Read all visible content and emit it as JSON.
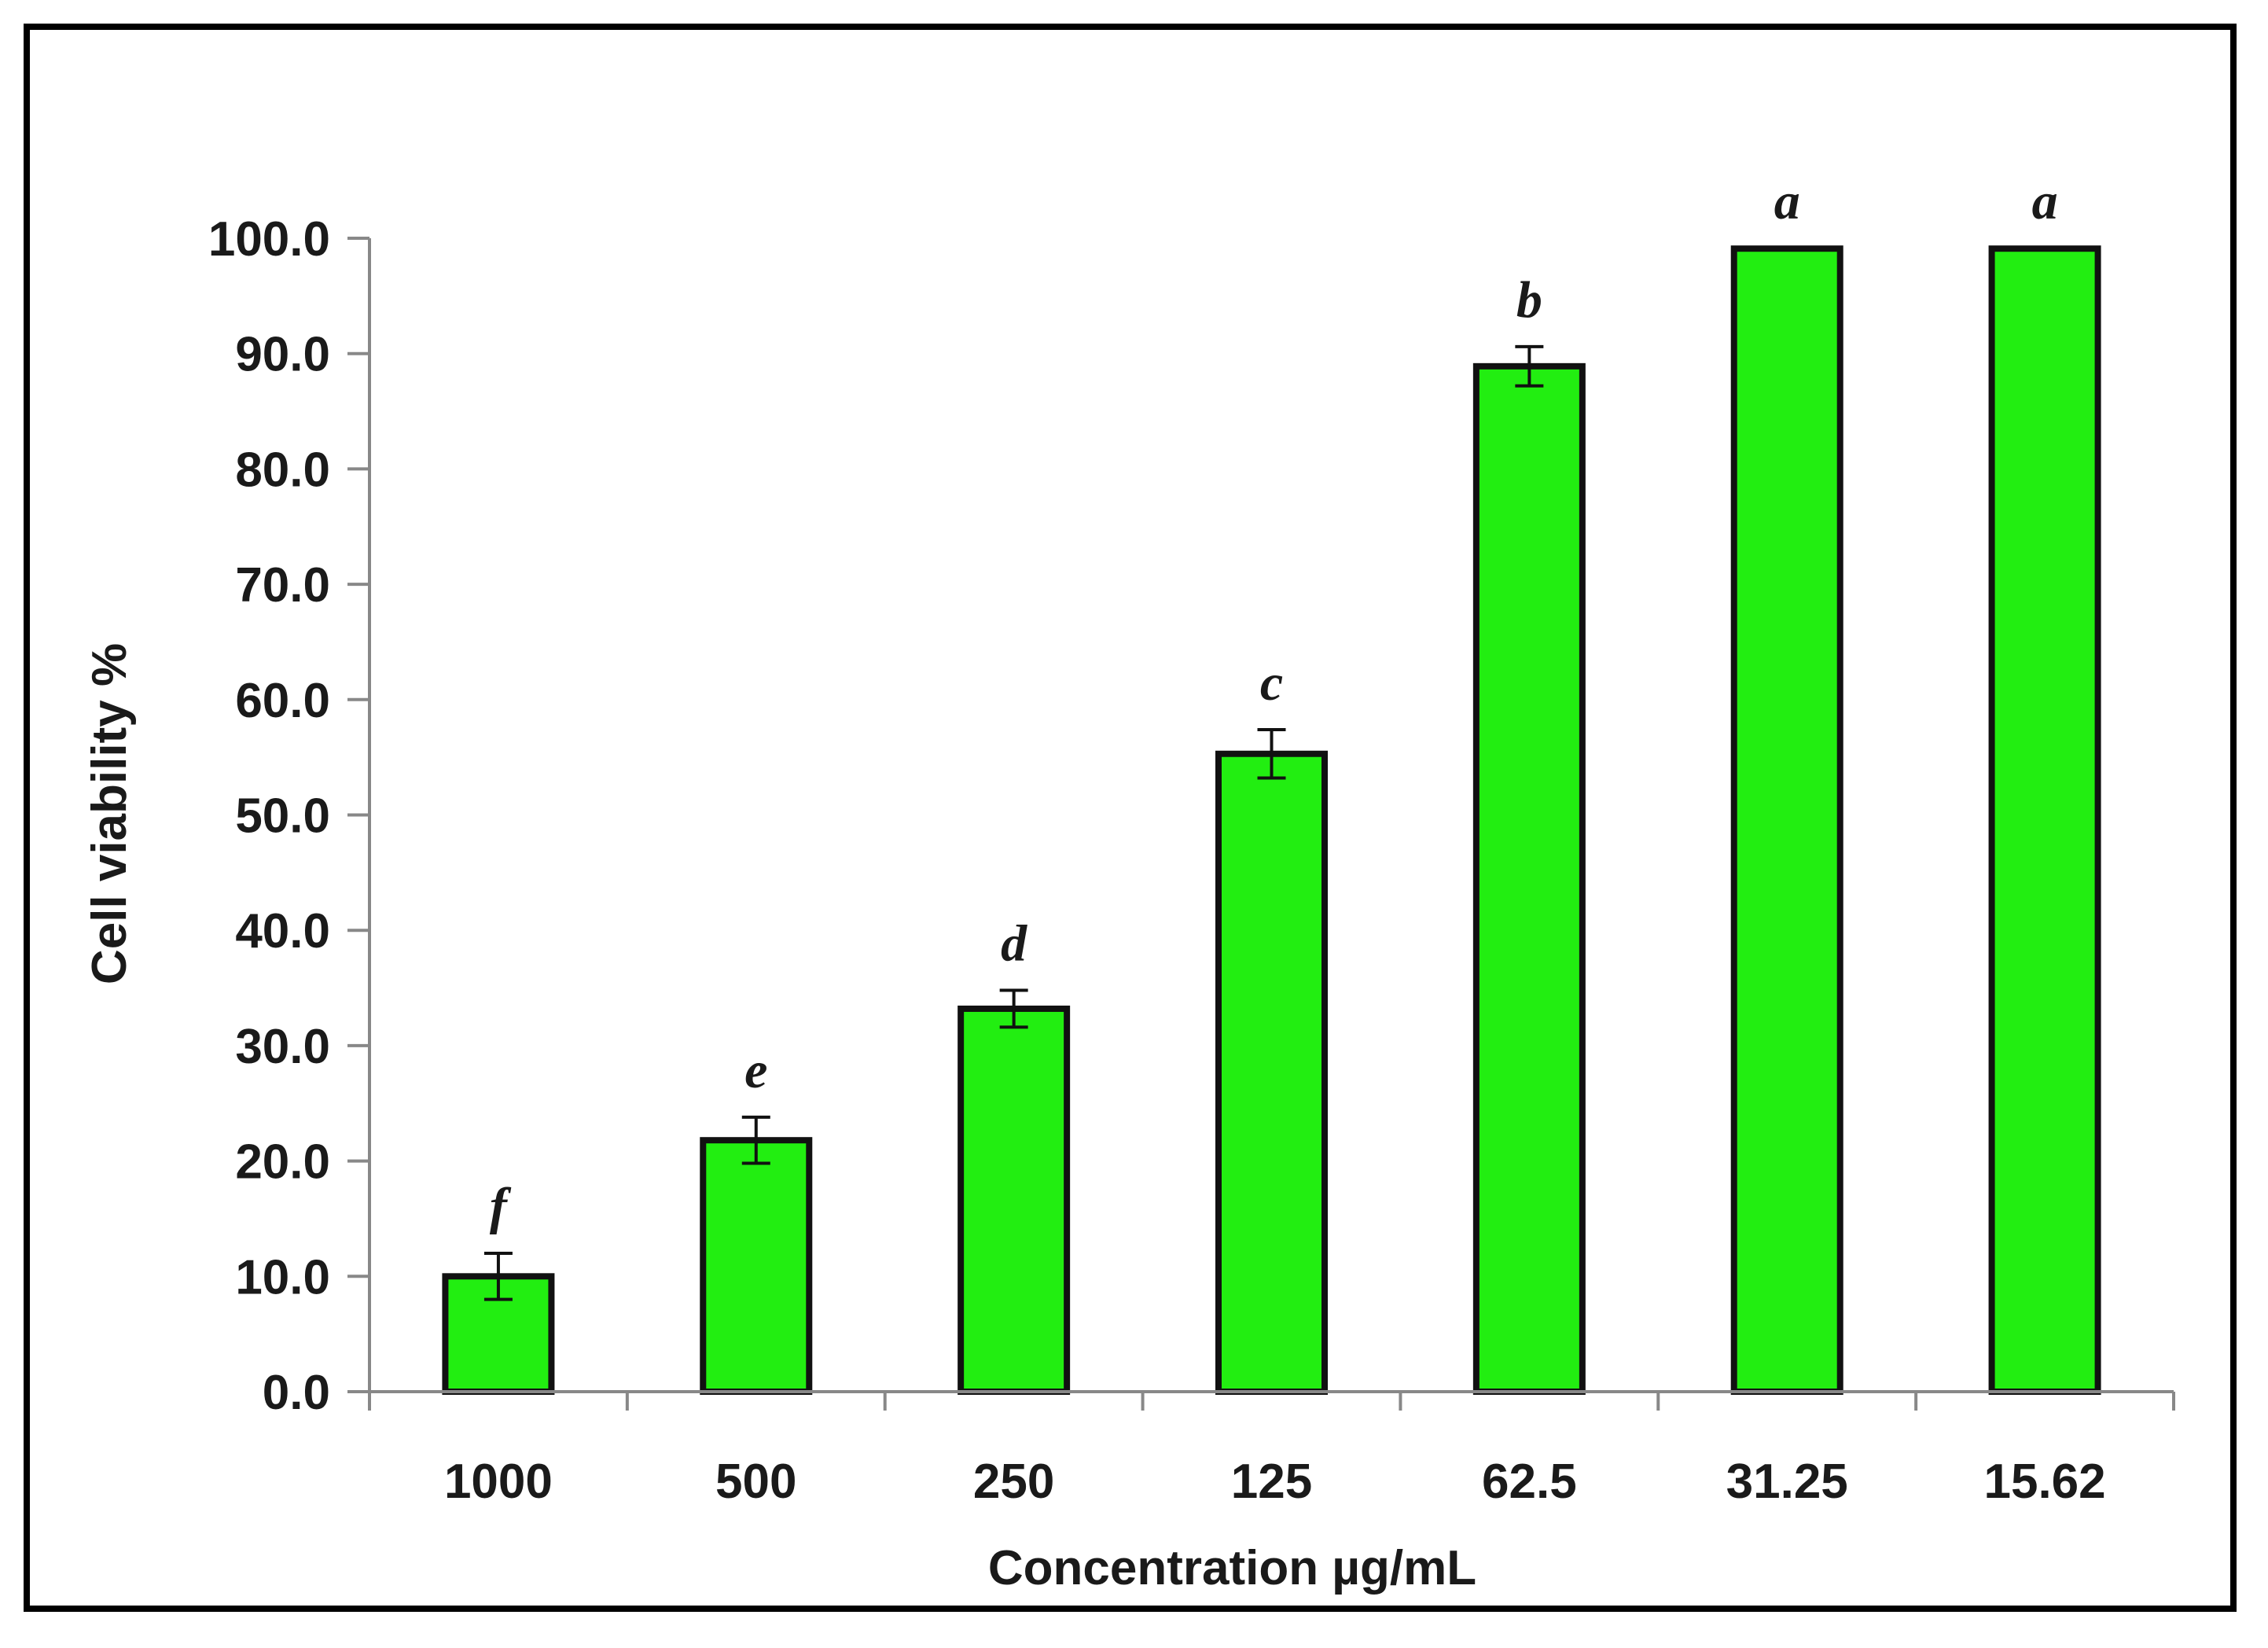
{
  "chart_data": {
    "type": "bar",
    "title": "",
    "xlabel": "Concentration µg/mL",
    "ylabel": "Cell viability %",
    "ylim": [
      0,
      100
    ],
    "y_ticks": [
      "0.0",
      "10.0",
      "20.0",
      "30.0",
      "40.0",
      "50.0",
      "60.0",
      "70.0",
      "80.0",
      "90.0",
      "100.0"
    ],
    "categories": [
      "1000",
      "500",
      "250",
      "125",
      "62.5",
      "31.25",
      "15.62"
    ],
    "series": [
      {
        "name": "Cell viability",
        "values": [
          10.0,
          21.8,
          33.2,
          55.3,
          88.9,
          99.1,
          99.1
        ],
        "errors": [
          2.0,
          2.0,
          1.6,
          2.1,
          1.7,
          0,
          0
        ],
        "significance": [
          "f",
          "e",
          "d",
          "c",
          "b",
          "a",
          "a"
        ],
        "color": "#22ee11"
      }
    ],
    "grid": false,
    "legend": "none"
  },
  "colors": {
    "bar_fill": "#22ee11",
    "bar_stroke": "#111111",
    "axis": "#888888",
    "text": "#1a1a1a"
  }
}
